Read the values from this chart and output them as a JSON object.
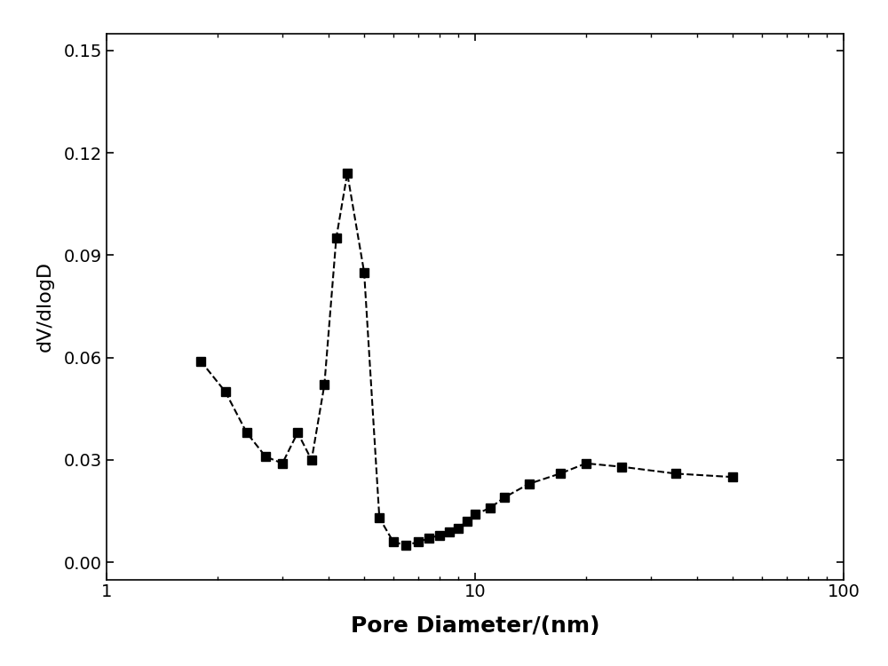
{
  "x": [
    1.8,
    2.1,
    2.4,
    2.7,
    3.0,
    3.3,
    3.6,
    3.9,
    4.2,
    4.5,
    5.0,
    5.5,
    6.0,
    6.5,
    7.0,
    7.5,
    8.0,
    8.5,
    9.0,
    9.5,
    10.0,
    11.0,
    12.0,
    14.0,
    17.0,
    20.0,
    25.0,
    35.0,
    50.0
  ],
  "y": [
    0.059,
    0.05,
    0.038,
    0.031,
    0.029,
    0.038,
    0.03,
    0.052,
    0.095,
    0.114,
    0.085,
    0.013,
    0.006,
    0.005,
    0.006,
    0.007,
    0.008,
    0.009,
    0.01,
    0.012,
    0.014,
    0.016,
    0.019,
    0.023,
    0.026,
    0.029,
    0.028,
    0.026,
    0.025
  ],
  "xlabel": "Pore Diameter/(nm)",
  "ylabel": "dV/dlogD",
  "xlim": [
    1,
    100
  ],
  "ylim": [
    -0.005,
    0.155
  ],
  "yticks": [
    0.0,
    0.03,
    0.06,
    0.09,
    0.12,
    0.15
  ],
  "background_color": "#ffffff",
  "line_color": "#000000",
  "marker_color": "#000000",
  "xlabel_fontsize": 18,
  "ylabel_fontsize": 16,
  "tick_fontsize": 14,
  "line_width": 1.5,
  "marker_size": 7,
  "marker_style": "s"
}
